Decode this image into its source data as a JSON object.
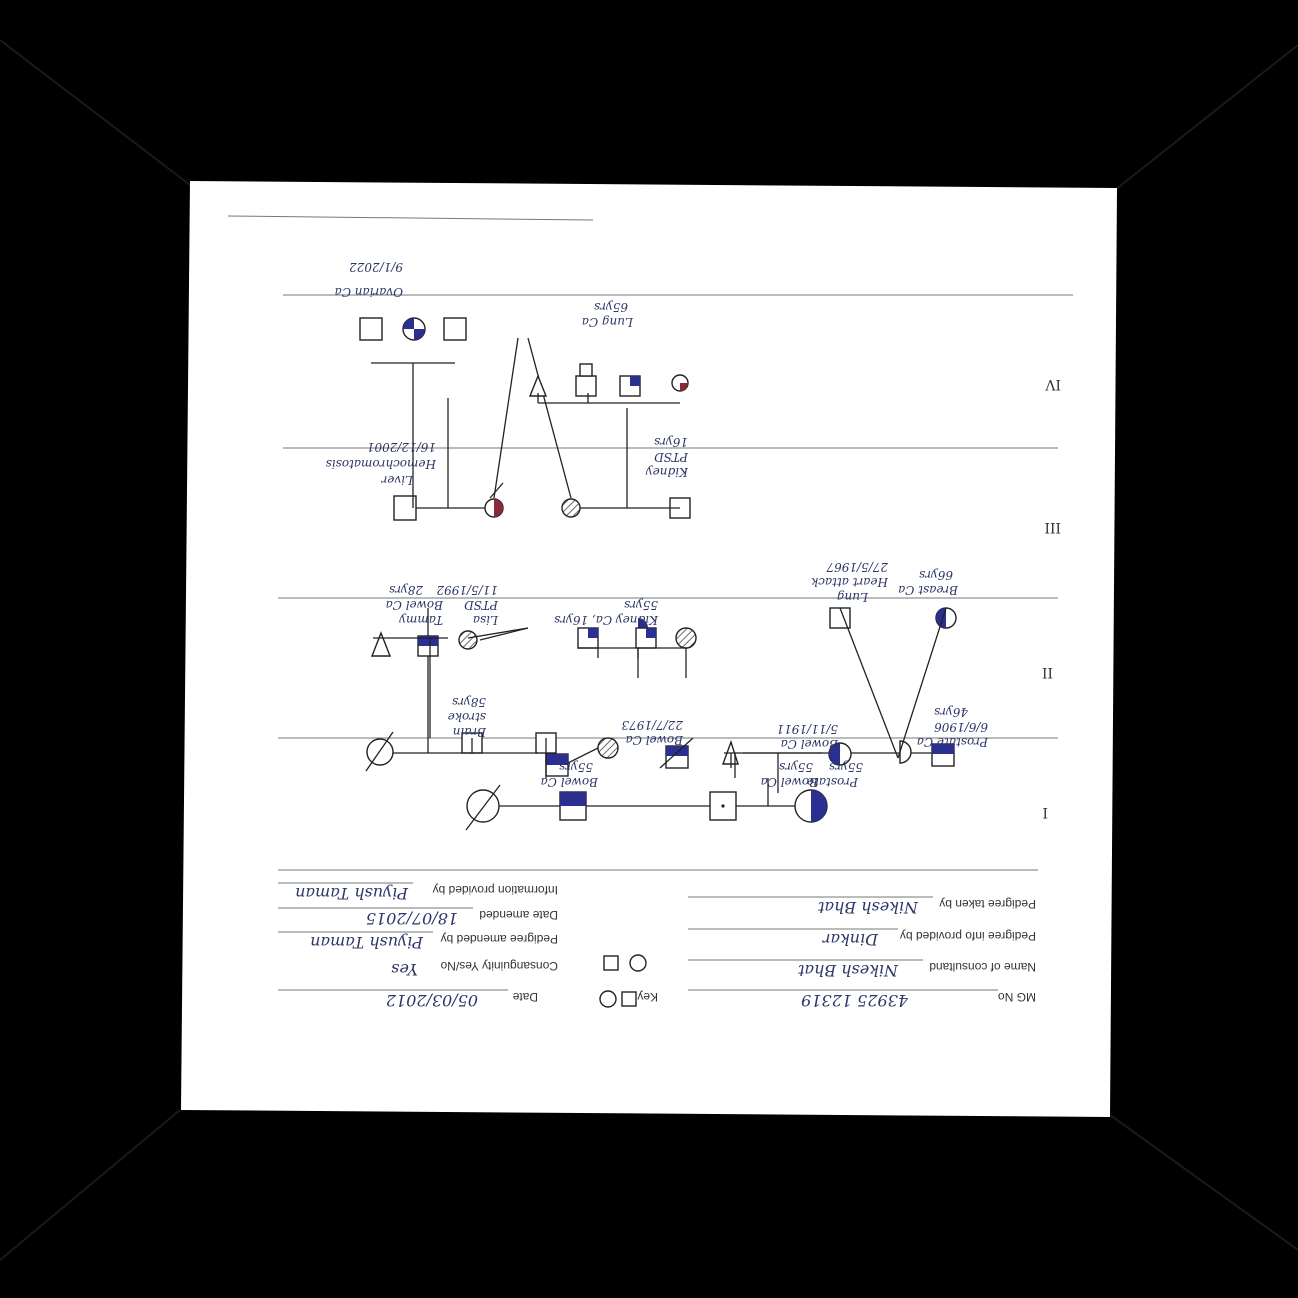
{
  "form": {
    "mg_no_label": "MG No",
    "mg_no_value": "43925 12319",
    "consultand_label": "Name of consultand",
    "consultand_value": "Nikesh Bhat",
    "info_by_label": "Pedigree info provided by",
    "info_by_value": "Dinkar",
    "taken_by_label": "Pedigree taken by",
    "taken_by_value": "Nikesh Bhat",
    "key_label": "Key",
    "date_label": "Date",
    "date_value": "05/03/2012",
    "consanguinity_label": "Consanguinity Yes/No",
    "consanguinity_value": "Yes",
    "amended_by_label": "Pedigree amended by",
    "amended_by_value": "Piyush Taman",
    "date_amended_label": "Date amended",
    "date_amended_value": "18/07/2015",
    "info_provided_label": "Information provided by",
    "info_provided_value": "Piyush Taman"
  },
  "generations": [
    "I",
    "II",
    "III",
    "IV"
  ],
  "annotations": {
    "a1": "Bowel Ca",
    "a2": "55yrs",
    "a3": "Ovarian Ca",
    "a4": "9/1/2022",
    "a5": "Lung Ca",
    "a6": "65yrs",
    "a7": "Kidney",
    "a8": "PTSD",
    "a9": "16yrs",
    "a10": "Liver",
    "a11": "Hemochromatosis",
    "a12": "16/12/2001",
    "a13": "Breast Ca",
    "a14": "66yrs",
    "a15": "Lung",
    "a16": "Heart attack",
    "a17": "27/5/1967",
    "a18": "Kidney Ca, 16yrs",
    "a19": "55yrs",
    "a20": "Lisa",
    "a21": "Tammy",
    "a22": "PTSD",
    "a23": "Bowel Ca",
    "a24": "11/5/1992",
    "a25": "28yrs",
    "a26": "Brain",
    "a27": "stroke",
    "a28": "58yrs",
    "a29": "Bowel Ca",
    "a30": "22/7/1973",
    "a31": "Bowel Ca",
    "a32": "5/11/1911",
    "a33": "Prostate Ca",
    "a34": "6/6/1906",
    "a35": "46yrs",
    "a36": "Prostate",
    "a37": "55yrs",
    "a38": "Bowel Ca",
    "a39": "55yrs"
  },
  "colors": {
    "affected_blue": "#2b2f8f",
    "affected_red": "#8a2a38",
    "ink": "#2c3566"
  }
}
